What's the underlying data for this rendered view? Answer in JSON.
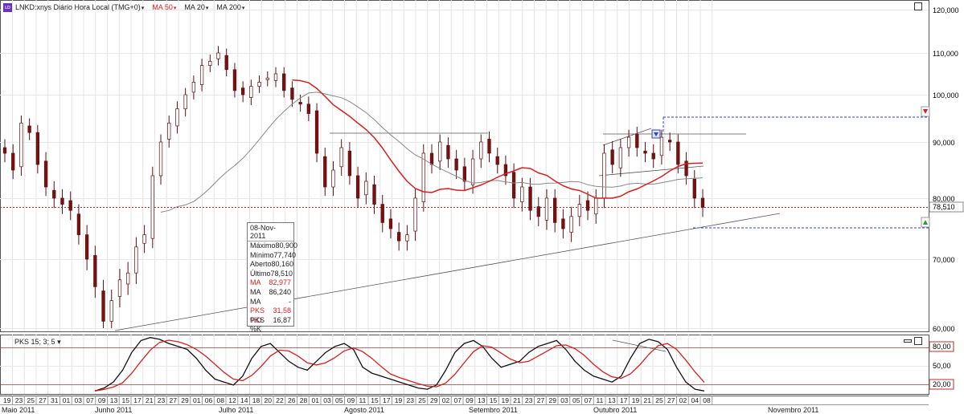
{
  "toolbar": {
    "symbol": "LNKD:xnys Diário Hora Local (TMG+0)",
    "ma50": "MA 50",
    "ma20": "MA 20",
    "ma200": "MA 200",
    "logo": "ʟᴅ"
  },
  "price_axis": {
    "ticks": [
      "120,000",
      "110,000",
      "100,000",
      "90,000",
      "80,000",
      "70,000",
      "60,000"
    ],
    "current_price": "78,510"
  },
  "indicator": {
    "label": "PKS 15; 3; 5",
    "ticks": [
      "80,00",
      "50,00",
      "20,00"
    ]
  },
  "tooltip": {
    "date": "08-Nov-2011",
    "rows": [
      {
        "label": "Máximo",
        "value": "80,900"
      },
      {
        "label": "Mínimo",
        "value": "77,740"
      },
      {
        "label": "Aberto",
        "value": "80,160"
      },
      {
        "label": "Último",
        "value": "78,510"
      },
      {
        "label": "MA",
        "value": "82,977",
        "red": true
      },
      {
        "label": "MA",
        "value": "86,240"
      },
      {
        "label": "MA",
        "value": "-"
      },
      {
        "label": "PKS %D",
        "value": "31,58",
        "red": true
      },
      {
        "label": "PKS %K",
        "value": "16,87"
      }
    ]
  },
  "date_axis": {
    "days": [
      "19",
      "23",
      "25",
      "27",
      "31",
      "01",
      "03",
      "07",
      "09",
      "13",
      "15",
      "17",
      "21",
      "23",
      "27",
      "29",
      "01",
      "06",
      "08",
      "12",
      "14",
      "18",
      "20",
      "22",
      "26",
      "28",
      "01",
      "03",
      "05",
      "09",
      "11",
      "15",
      "17",
      "19",
      "23",
      "25",
      "29",
      "02",
      "07",
      "09",
      "13",
      "15",
      "19",
      "21",
      "23",
      "27",
      "29",
      "03",
      "05",
      "07",
      "11",
      "13",
      "17",
      "19",
      "21",
      "25",
      "27",
      "02",
      "04",
      "08"
    ],
    "months": [
      "Maio 2011",
      "Junho 2011",
      "Julho 2011",
      "Agosto 2011",
      "Setembro 2011",
      "Outubro 2011",
      "Novembro 2011"
    ]
  },
  "colors": {
    "up": "#ffffff",
    "down": "#7a1010",
    "ma50": "#d42020",
    "ma20": "#888888",
    "price_line": "#b03030",
    "target_line": "#3344bb"
  }
}
